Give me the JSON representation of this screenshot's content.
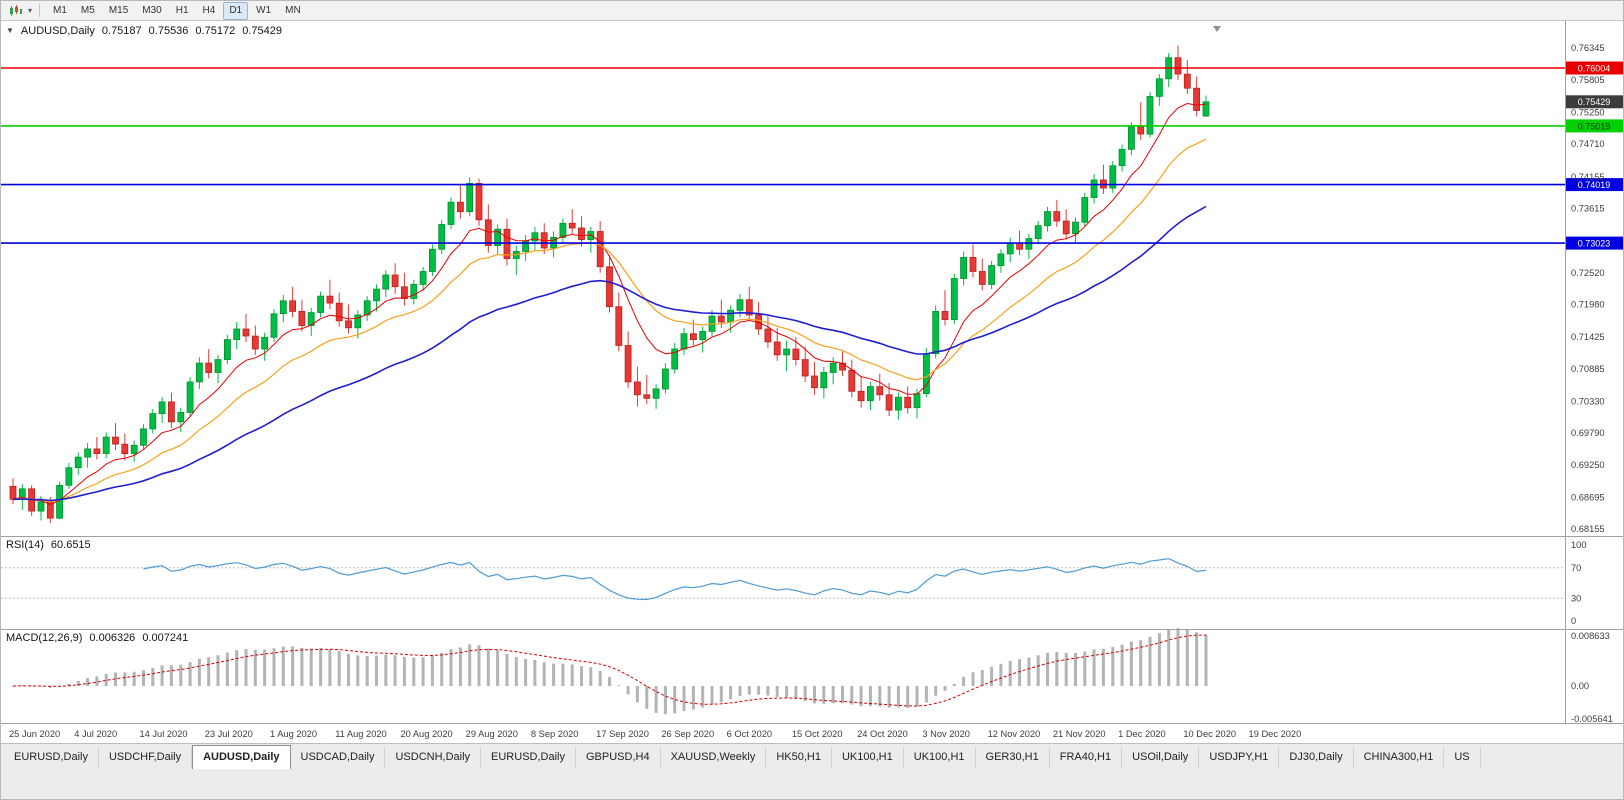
{
  "toolbar": {
    "chart_icon": "candlestick-chart",
    "dropdown_caret": "▾",
    "timeframes": [
      {
        "label": "M1"
      },
      {
        "label": "M5"
      },
      {
        "label": "M15"
      },
      {
        "label": "M30"
      },
      {
        "label": "H1"
      },
      {
        "label": "H4"
      },
      {
        "label": "D1",
        "active": true
      },
      {
        "label": "W1"
      },
      {
        "label": "MN"
      }
    ]
  },
  "chart": {
    "header": {
      "dropdown_glyph": "▼",
      "symbol": "AUDUSD,Daily",
      "open": "0.75187",
      "high": "0.75536",
      "low": "0.75172",
      "close": "0.75429"
    },
    "colors": {
      "up": "#00bd46",
      "up_border": "#00912f",
      "down": "#e53935",
      "down_border": "#bf1f1c",
      "axis_text": "#3c3c3c",
      "divider": "#a0a0a0",
      "level_dash": "#bdbdbd"
    }
  },
  "rsi": {
    "name": "RSI(14)",
    "value": "60.6515"
  },
  "macd": {
    "name": "MACD(12,26,9)",
    "value1": "0.006326",
    "value2": "0.007241"
  },
  "chart_data": {
    "type": "candlestick",
    "symbol": "AUDUSD",
    "timeframe": "Daily",
    "ylim": [
      0.6826,
      0.7676
    ],
    "y_ticks": [
      "0.76345",
      "0.75805",
      "0.75250",
      "0.74710",
      "0.74155",
      "0.73615",
      "0.72520",
      "0.71980",
      "0.71425",
      "0.70885",
      "0.70330",
      "0.69790",
      "0.69250",
      "0.68695",
      "0.68155"
    ],
    "h_lines": [
      {
        "label": "0.76004",
        "price": 0.76004,
        "color": "#e80000",
        "text_color": "#ffffff"
      },
      {
        "label": "0.75019",
        "price": 0.75019,
        "color": "#00d000",
        "text_color": "#073b00"
      },
      {
        "label": "0.74019",
        "price": 0.74019,
        "color": "#0000e0",
        "text_color": "#ffffff"
      },
      {
        "label": "0.73023",
        "price": 0.73023,
        "color": "#0000e0",
        "text_color": "#ffffff"
      }
    ],
    "current_price": {
      "label": "0.75429",
      "price": 0.75429,
      "color": "#3c3c3c",
      "text_color": "#ffffff"
    },
    "moving_averages": [
      {
        "name": "ma-fast",
        "period": 8,
        "color": "#e80000",
        "width": 1
      },
      {
        "name": "ma-medium",
        "period": 17,
        "color": "#f9a11b",
        "width": 1.2
      },
      {
        "name": "ma-slow",
        "period": 40,
        "color": "#1f1fd0",
        "width": 1.6
      }
    ],
    "x_labels": [
      {
        "label": "25 Jun 2020",
        "i": 0
      },
      {
        "label": "4 Jul 2020",
        "i": 7
      },
      {
        "label": "14 Jul 2020",
        "i": 14
      },
      {
        "label": "23 Jul 2020",
        "i": 21
      },
      {
        "label": "1 Aug 2020",
        "i": 28
      },
      {
        "label": "11 Aug 2020",
        "i": 35
      },
      {
        "label": "20 Aug 2020",
        "i": 42
      },
      {
        "label": "29 Aug 2020",
        "i": 49
      },
      {
        "label": "8 Sep 2020",
        "i": 56
      },
      {
        "label": "17 Sep 2020",
        "i": 63
      },
      {
        "label": "26 Sep 2020",
        "i": 70
      },
      {
        "label": "6 Oct 2020",
        "i": 77
      },
      {
        "label": "15 Oct 2020",
        "i": 84
      },
      {
        "label": "24 Oct 2020",
        "i": 91
      },
      {
        "label": "3 Nov 2020",
        "i": 98
      },
      {
        "label": "12 Nov 2020",
        "i": 105
      },
      {
        "label": "21 Nov 2020",
        "i": 112
      },
      {
        "label": "1 Dec 2020",
        "i": 119
      },
      {
        "label": "10 Dec 2020",
        "i": 126
      },
      {
        "label": "19 Dec 2020",
        "i": 133
      }
    ],
    "indicators": {
      "rsi": {
        "name": "RSI(14)",
        "period": 14,
        "value": "60.6515",
        "color": "#4f9bd5",
        "levels": [
          {
            "label": "100",
            "v": 100
          },
          {
            "label": "70",
            "v": 70
          },
          {
            "label": "30",
            "v": 30
          },
          {
            "label": "0",
            "v": 0
          }
        ],
        "dashed_levels": [
          70,
          30
        ]
      },
      "macd": {
        "name": "MACD(12,26,9)",
        "fast": 12,
        "slow": 26,
        "signal": 9,
        "value_main": "0.006326",
        "value_signal": "0.007241",
        "hist_color": "#b4b4b4",
        "signal_color": "#d40000",
        "levels": [
          {
            "label": "0.008633",
            "v": 0.008633
          },
          {
            "label": "0.00",
            "v": 0
          },
          {
            "label": "-0.005641",
            "v": -0.005641
          }
        ]
      }
    },
    "ohlc": [
      [
        0.6888,
        0.6902,
        0.6858,
        0.6866
      ],
      [
        0.6866,
        0.6892,
        0.6848,
        0.6884
      ],
      [
        0.6884,
        0.689,
        0.6838,
        0.6846
      ],
      [
        0.6846,
        0.6872,
        0.683,
        0.6862
      ],
      [
        0.6862,
        0.687,
        0.6826,
        0.6834
      ],
      [
        0.6834,
        0.6896,
        0.6832,
        0.689
      ],
      [
        0.689,
        0.6928,
        0.6884,
        0.692
      ],
      [
        0.692,
        0.6946,
        0.6908,
        0.6938
      ],
      [
        0.6938,
        0.6962,
        0.692,
        0.6952
      ],
      [
        0.6952,
        0.6972,
        0.6934,
        0.6944
      ],
      [
        0.6944,
        0.698,
        0.6936,
        0.6972
      ],
      [
        0.6972,
        0.6996,
        0.695,
        0.696
      ],
      [
        0.696,
        0.6978,
        0.6932,
        0.6944
      ],
      [
        0.6944,
        0.6966,
        0.693,
        0.6958
      ],
      [
        0.6958,
        0.6994,
        0.6952,
        0.6986
      ],
      [
        0.6986,
        0.702,
        0.6978,
        0.7012
      ],
      [
        0.7012,
        0.704,
        0.6996,
        0.7032
      ],
      [
        0.7032,
        0.7048,
        0.6988,
        0.6998
      ],
      [
        0.6998,
        0.7022,
        0.698,
        0.7014
      ],
      [
        0.7014,
        0.7074,
        0.7008,
        0.7066
      ],
      [
        0.7066,
        0.7108,
        0.7054,
        0.7098
      ],
      [
        0.7098,
        0.7122,
        0.7072,
        0.7082
      ],
      [
        0.7082,
        0.7112,
        0.7064,
        0.7104
      ],
      [
        0.7104,
        0.7146,
        0.7096,
        0.7138
      ],
      [
        0.7138,
        0.7168,
        0.7122,
        0.7156
      ],
      [
        0.7156,
        0.7182,
        0.7134,
        0.7144
      ],
      [
        0.7144,
        0.7162,
        0.7112,
        0.7122
      ],
      [
        0.7122,
        0.715,
        0.7102,
        0.7142
      ],
      [
        0.7142,
        0.719,
        0.7134,
        0.7182
      ],
      [
        0.7182,
        0.7214,
        0.7168,
        0.7204
      ],
      [
        0.7204,
        0.7228,
        0.7176,
        0.7186
      ],
      [
        0.7186,
        0.7206,
        0.7152,
        0.7162
      ],
      [
        0.7162,
        0.7192,
        0.7144,
        0.7184
      ],
      [
        0.7184,
        0.722,
        0.7176,
        0.7212
      ],
      [
        0.7212,
        0.724,
        0.719,
        0.72
      ],
      [
        0.72,
        0.7218,
        0.716,
        0.717
      ],
      [
        0.717,
        0.7198,
        0.7148,
        0.7158
      ],
      [
        0.7158,
        0.7188,
        0.714,
        0.718
      ],
      [
        0.718,
        0.7212,
        0.717,
        0.7204
      ],
      [
        0.7204,
        0.7232,
        0.7186,
        0.7224
      ],
      [
        0.7224,
        0.7256,
        0.721,
        0.7248
      ],
      [
        0.7248,
        0.7268,
        0.7216,
        0.7228
      ],
      [
        0.7228,
        0.7252,
        0.7196,
        0.7208
      ],
      [
        0.7208,
        0.724,
        0.7198,
        0.7232
      ],
      [
        0.7232,
        0.7262,
        0.7222,
        0.7254
      ],
      [
        0.7254,
        0.73,
        0.7246,
        0.7292
      ],
      [
        0.7292,
        0.7342,
        0.7284,
        0.7334
      ],
      [
        0.7334,
        0.738,
        0.7326,
        0.7372
      ],
      [
        0.7372,
        0.7402,
        0.7344,
        0.7356
      ],
      [
        0.7356,
        0.7414,
        0.7348,
        0.7404
      ],
      [
        0.7404,
        0.7412,
        0.7332,
        0.7342
      ],
      [
        0.7342,
        0.7368,
        0.7286,
        0.7298
      ],
      [
        0.7298,
        0.7334,
        0.7284,
        0.7326
      ],
      [
        0.7326,
        0.7344,
        0.7264,
        0.7276
      ],
      [
        0.7276,
        0.7298,
        0.7248,
        0.7288
      ],
      [
        0.7288,
        0.7316,
        0.7272,
        0.7306
      ],
      [
        0.7306,
        0.733,
        0.729,
        0.732
      ],
      [
        0.732,
        0.7336,
        0.7284,
        0.7294
      ],
      [
        0.7294,
        0.7322,
        0.7278,
        0.7312
      ],
      [
        0.7312,
        0.7344,
        0.7302,
        0.7336
      ],
      [
        0.7336,
        0.736,
        0.7318,
        0.7328
      ],
      [
        0.7328,
        0.7348,
        0.7296,
        0.7308
      ],
      [
        0.7308,
        0.733,
        0.7286,
        0.7322
      ],
      [
        0.7322,
        0.734,
        0.7252,
        0.7262
      ],
      [
        0.7262,
        0.7282,
        0.7184,
        0.7194
      ],
      [
        0.7194,
        0.7218,
        0.7118,
        0.7128
      ],
      [
        0.7128,
        0.7152,
        0.7056,
        0.7066
      ],
      [
        0.7066,
        0.7092,
        0.7024,
        0.7044
      ],
      [
        0.7044,
        0.7078,
        0.7028,
        0.7038
      ],
      [
        0.7038,
        0.7062,
        0.702,
        0.7054
      ],
      [
        0.7054,
        0.7098,
        0.7046,
        0.7088
      ],
      [
        0.7088,
        0.7132,
        0.708,
        0.7122
      ],
      [
        0.7122,
        0.7158,
        0.7112,
        0.7148
      ],
      [
        0.7148,
        0.7172,
        0.7128,
        0.7138
      ],
      [
        0.7138,
        0.716,
        0.7116,
        0.7152
      ],
      [
        0.7152,
        0.7188,
        0.7144,
        0.7178
      ],
      [
        0.7178,
        0.7206,
        0.7158,
        0.7168
      ],
      [
        0.7168,
        0.7196,
        0.715,
        0.7188
      ],
      [
        0.7188,
        0.7216,
        0.7176,
        0.7206
      ],
      [
        0.7206,
        0.7228,
        0.717,
        0.718
      ],
      [
        0.718,
        0.7202,
        0.7146,
        0.7156
      ],
      [
        0.7156,
        0.7178,
        0.7124,
        0.7134
      ],
      [
        0.7134,
        0.7158,
        0.7102,
        0.7112
      ],
      [
        0.7112,
        0.7136,
        0.7084,
        0.7122
      ],
      [
        0.7122,
        0.7142,
        0.7094,
        0.7104
      ],
      [
        0.7104,
        0.7126,
        0.7066,
        0.7076
      ],
      [
        0.7076,
        0.71,
        0.7044,
        0.7056
      ],
      [
        0.7056,
        0.7092,
        0.7038,
        0.7082
      ],
      [
        0.7082,
        0.7108,
        0.7062,
        0.7098
      ],
      [
        0.7098,
        0.7118,
        0.7076,
        0.7086
      ],
      [
        0.7086,
        0.7104,
        0.704,
        0.705
      ],
      [
        0.705,
        0.7076,
        0.7022,
        0.7034
      ],
      [
        0.7034,
        0.7066,
        0.7018,
        0.7058
      ],
      [
        0.7058,
        0.708,
        0.7034,
        0.7044
      ],
      [
        0.7044,
        0.7064,
        0.7008,
        0.7018
      ],
      [
        0.7018,
        0.7048,
        0.7002,
        0.704
      ],
      [
        0.704,
        0.7058,
        0.7012,
        0.7022
      ],
      [
        0.7022,
        0.7054,
        0.7004,
        0.7046
      ],
      [
        0.7046,
        0.7124,
        0.704,
        0.7114
      ],
      [
        0.7114,
        0.7196,
        0.7106,
        0.7186
      ],
      [
        0.7186,
        0.7222,
        0.7162,
        0.7172
      ],
      [
        0.7172,
        0.725,
        0.7164,
        0.7242
      ],
      [
        0.7242,
        0.7288,
        0.723,
        0.7278
      ],
      [
        0.7278,
        0.73,
        0.7244,
        0.7254
      ],
      [
        0.7254,
        0.7276,
        0.7222,
        0.7232
      ],
      [
        0.7232,
        0.7272,
        0.7224,
        0.7264
      ],
      [
        0.7264,
        0.7292,
        0.7252,
        0.7284
      ],
      [
        0.7284,
        0.7312,
        0.727,
        0.7302
      ],
      [
        0.7302,
        0.7324,
        0.7282,
        0.7292
      ],
      [
        0.7292,
        0.7318,
        0.7276,
        0.731
      ],
      [
        0.731,
        0.734,
        0.73,
        0.7332
      ],
      [
        0.7332,
        0.7364,
        0.7322,
        0.7356
      ],
      [
        0.7356,
        0.7376,
        0.733,
        0.734
      ],
      [
        0.734,
        0.736,
        0.7308,
        0.7318
      ],
      [
        0.7318,
        0.7346,
        0.7304,
        0.7338
      ],
      [
        0.7338,
        0.7388,
        0.733,
        0.738
      ],
      [
        0.738,
        0.742,
        0.737,
        0.741
      ],
      [
        0.741,
        0.7436,
        0.7386,
        0.7396
      ],
      [
        0.7396,
        0.7442,
        0.7388,
        0.7434
      ],
      [
        0.7434,
        0.747,
        0.7424,
        0.7462
      ],
      [
        0.7462,
        0.7508,
        0.7452,
        0.75
      ],
      [
        0.75,
        0.7542,
        0.7478,
        0.7488
      ],
      [
        0.7488,
        0.756,
        0.7482,
        0.7552
      ],
      [
        0.7552,
        0.759,
        0.7536,
        0.7582
      ],
      [
        0.7582,
        0.7626,
        0.7568,
        0.7618
      ],
      [
        0.7618,
        0.7639,
        0.758,
        0.759
      ],
      [
        0.759,
        0.7614,
        0.7556,
        0.7566
      ],
      [
        0.7566,
        0.7586,
        0.7518,
        0.7528
      ],
      [
        0.75187,
        0.75536,
        0.75172,
        0.75429
      ]
    ]
  },
  "tabs": {
    "items": [
      {
        "label": "EURUSD,Daily"
      },
      {
        "label": "USDCHF,Daily"
      },
      {
        "label": "AUDUSD,Daily",
        "active": true
      },
      {
        "label": "USDCAD,Daily"
      },
      {
        "label": "USDCNH,Daily"
      },
      {
        "label": "EURUSD,Daily"
      },
      {
        "label": "GBPUSD,H4"
      },
      {
        "label": "XAUUSD,Weekly"
      },
      {
        "label": "HK50,H1"
      },
      {
        "label": "UK100,H1"
      },
      {
        "label": "UK100,H1"
      },
      {
        "label": "GER30,H1"
      },
      {
        "label": "FRA40,H1"
      },
      {
        "label": "USOil,Daily"
      },
      {
        "label": "USDJPY,H1"
      },
      {
        "label": "DJ30,Daily"
      },
      {
        "label": "CHINA300,H1"
      },
      {
        "label": "US"
      }
    ]
  }
}
